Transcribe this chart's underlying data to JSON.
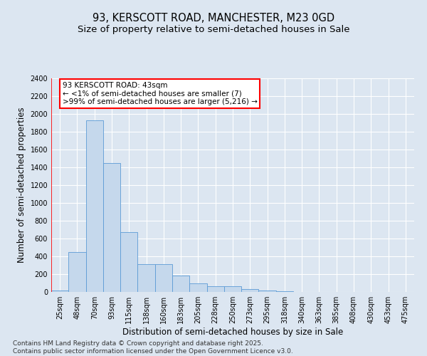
{
  "title_line1": "93, KERSCOTT ROAD, MANCHESTER, M23 0GD",
  "title_line2": "Size of property relative to semi-detached houses in Sale",
  "xlabel": "Distribution of semi-detached houses by size in Sale",
  "ylabel": "Number of semi-detached properties",
  "categories": [
    "25sqm",
    "48sqm",
    "70sqm",
    "93sqm",
    "115sqm",
    "138sqm",
    "160sqm",
    "183sqm",
    "205sqm",
    "228sqm",
    "250sqm",
    "273sqm",
    "295sqm",
    "318sqm",
    "340sqm",
    "363sqm",
    "385sqm",
    "408sqm",
    "430sqm",
    "453sqm",
    "475sqm"
  ],
  "values": [
    15,
    450,
    1925,
    1450,
    670,
    310,
    310,
    185,
    100,
    65,
    65,
    35,
    20,
    10,
    3,
    1,
    0,
    0,
    0,
    0,
    0
  ],
  "bar_color": "#c5d8ec",
  "bar_edge_color": "#5b9bd5",
  "annotation_text": "93 KERSCOTT ROAD: 43sqm\n← <1% of semi-detached houses are smaller (7)\n>99% of semi-detached houses are larger (5,216) →",
  "annotation_box_color": "white",
  "annotation_box_edge_color": "red",
  "vline_color": "red",
  "ylim": [
    0,
    2400
  ],
  "yticks": [
    0,
    200,
    400,
    600,
    800,
    1000,
    1200,
    1400,
    1600,
    1800,
    2000,
    2200,
    2400
  ],
  "background_color": "#dce6f1",
  "plot_background_color": "#dce6f1",
  "footer_line1": "Contains HM Land Registry data © Crown copyright and database right 2025.",
  "footer_line2": "Contains public sector information licensed under the Open Government Licence v3.0.",
  "title_fontsize": 10.5,
  "subtitle_fontsize": 9.5,
  "tick_fontsize": 7,
  "label_fontsize": 8.5,
  "annotation_fontsize": 7.5,
  "footer_fontsize": 6.5
}
